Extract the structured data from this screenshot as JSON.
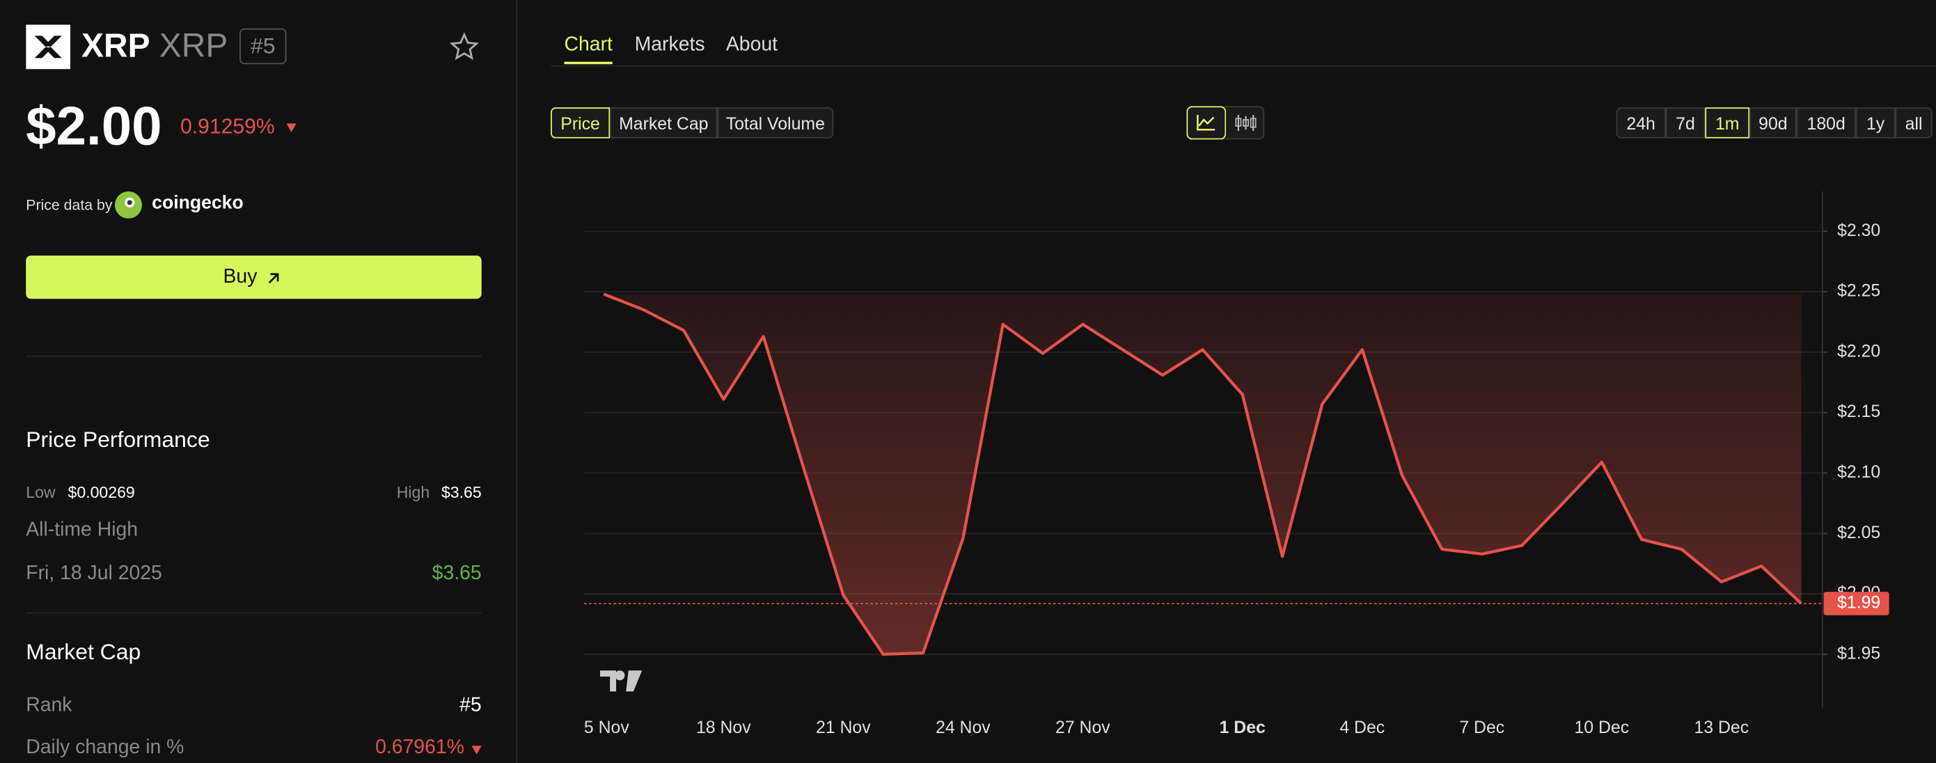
{
  "header": {
    "symbol": "XRP",
    "name": "XRP",
    "rank": "#5"
  },
  "price": {
    "value": "$2.00",
    "change": "0.91259%"
  },
  "source": {
    "label": "Price data by",
    "provider": "coingecko"
  },
  "buy": "Buy",
  "performance": {
    "title": "Price Performance",
    "low_label": "Low",
    "low": "$0.00269",
    "high_label": "High",
    "high": "$3.65",
    "ath_label": "All-time High",
    "ath_date": "Fri, 18 Jul 2025",
    "ath": "$3.65"
  },
  "market_cap": {
    "title": "Market Cap",
    "rank_label": "Rank",
    "rank": "#5",
    "daily_label": "Daily change in %",
    "daily": "0.67961%"
  },
  "tabs": [
    "Chart",
    "Markets",
    "About"
  ],
  "metric_tabs": [
    "Price",
    "Market Cap",
    "Total Volume"
  ],
  "ranges": [
    "24h",
    "7d",
    "1m",
    "90d",
    "180d",
    "1y",
    "all"
  ],
  "chart_data": {
    "type": "line",
    "color": "#e5534b",
    "categories": [
      "5 Nov",
      null,
      null,
      "18 Nov",
      null,
      null,
      "21 Nov",
      null,
      null,
      "24 Nov",
      null,
      null,
      "27 Nov",
      null,
      null,
      null,
      "1 Dec",
      null,
      null,
      "4 Dec",
      null,
      null,
      "7 Dec",
      null,
      null,
      "10 Dec",
      null,
      null,
      "13 Dec",
      null,
      null
    ],
    "values": [
      2.248,
      2.235,
      2.218,
      2.161,
      2.213,
      2.105,
      1.999,
      1.95,
      1.951,
      2.046,
      2.223,
      2.199,
      2.223,
      2.202,
      2.181,
      2.202,
      2.165,
      2.031,
      2.157,
      2.202,
      2.098,
      2.037,
      2.033,
      2.04,
      2.074,
      2.109,
      2.045,
      2.037,
      2.01,
      2.023,
      1.992
    ],
    "ylim": [
      1.906,
      2.333
    ],
    "yticks": [
      {
        "value": 1.95,
        "label": "$1.95"
      },
      {
        "value": 2.0,
        "label": "$2.00"
      },
      {
        "value": 2.05,
        "label": "$2.05"
      },
      {
        "value": 2.1,
        "label": "$2.10"
      },
      {
        "value": 2.15,
        "label": "$2.15"
      },
      {
        "value": 2.2,
        "label": "$2.20"
      },
      {
        "value": 2.25,
        "label": "$2.25"
      },
      {
        "value": 2.3,
        "label": "$2.30"
      }
    ],
    "last_price": {
      "value": 1.992,
      "label": "$1.99"
    },
    "grid": true
  }
}
